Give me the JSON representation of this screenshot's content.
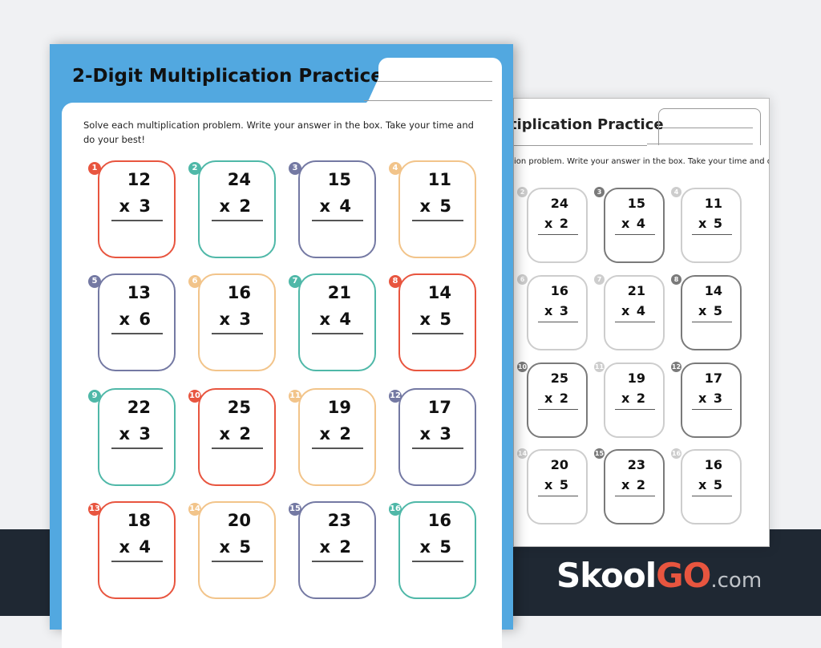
{
  "worksheet": {
    "title": "2-Digit Multiplication Practice",
    "back_title": "tiplication Practice",
    "instructions": "Solve each multiplication problem. Write your answer in the box. Take your time and do your best!",
    "back_instructions": "ion problem. Write your answer in the box. Take your time and do",
    "colors": {
      "red": "#e8553f",
      "teal": "#4fb8a8",
      "slate": "#7479a3",
      "orange": "#f2c48a"
    },
    "problems": [
      {
        "n": "1",
        "a": "12",
        "b": "x 3",
        "color": "red"
      },
      {
        "n": "2",
        "a": "24",
        "b": "x 2",
        "color": "teal"
      },
      {
        "n": "3",
        "a": "15",
        "b": "x 4",
        "color": "slate"
      },
      {
        "n": "4",
        "a": "11",
        "b": "x 5",
        "color": "orange"
      },
      {
        "n": "5",
        "a": "13",
        "b": "x 6",
        "color": "slate"
      },
      {
        "n": "6",
        "a": "16",
        "b": "x 3",
        "color": "orange"
      },
      {
        "n": "7",
        "a": "21",
        "b": "x 4",
        "color": "teal"
      },
      {
        "n": "8",
        "a": "14",
        "b": "x 5",
        "color": "red"
      },
      {
        "n": "9",
        "a": "22",
        "b": "x 3",
        "color": "teal"
      },
      {
        "n": "10",
        "a": "25",
        "b": "x 2",
        "color": "red"
      },
      {
        "n": "11",
        "a": "19",
        "b": "x 2",
        "color": "orange"
      },
      {
        "n": "12",
        "a": "17",
        "b": "x 3",
        "color": "slate"
      },
      {
        "n": "13",
        "a": "18",
        "b": "x 4",
        "color": "red"
      },
      {
        "n": "14",
        "a": "20",
        "b": "x 5",
        "color": "orange"
      },
      {
        "n": "15",
        "a": "23",
        "b": "x 2",
        "color": "slate"
      },
      {
        "n": "16",
        "a": "16",
        "b": "x 5",
        "color": "teal"
      }
    ]
  },
  "brand": {
    "name_a": "Skool",
    "name_b": "GO",
    "suffix": ".com"
  }
}
